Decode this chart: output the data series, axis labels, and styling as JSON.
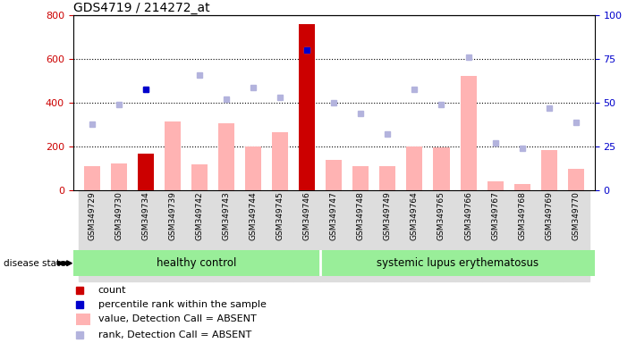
{
  "title": "GDS4719 / 214272_at",
  "samples": [
    "GSM349729",
    "GSM349730",
    "GSM349734",
    "GSM349739",
    "GSM349742",
    "GSM349743",
    "GSM349744",
    "GSM349745",
    "GSM349746",
    "GSM349747",
    "GSM349748",
    "GSM349749",
    "GSM349764",
    "GSM349765",
    "GSM349766",
    "GSM349767",
    "GSM349768",
    "GSM349769",
    "GSM349770"
  ],
  "n_healthy": 9,
  "n_sle": 10,
  "value_bars": [
    110,
    125,
    170,
    315,
    120,
    305,
    200,
    265,
    760,
    140,
    110,
    110,
    200,
    195,
    525,
    40,
    30,
    185,
    100
  ],
  "rank_dots_pct": [
    38,
    49,
    58,
    null,
    66,
    52,
    59,
    53,
    80,
    50,
    44,
    32,
    58,
    49,
    76,
    27,
    24,
    47,
    39
  ],
  "count_bars": [
    null,
    null,
    170,
    null,
    null,
    null,
    null,
    null,
    760,
    null,
    null,
    null,
    null,
    null,
    null,
    null,
    null,
    null,
    null
  ],
  "percentile_dots_pct": [
    null,
    null,
    58,
    null,
    null,
    null,
    null,
    null,
    80,
    null,
    null,
    null,
    null,
    null,
    null,
    null,
    null,
    null,
    null
  ],
  "ylim_left": [
    0,
    800
  ],
  "ylim_right": [
    0,
    100
  ],
  "left_yticks": [
    0,
    200,
    400,
    600,
    800
  ],
  "right_yticks": [
    0,
    25,
    50,
    75,
    100
  ],
  "bar_color_value": "#ffb3b3",
  "bar_color_count": "#cc0000",
  "dot_color_rank": "#b3b3dd",
  "dot_color_percentile": "#0000cc",
  "group_color": "#99ee99",
  "label_color_left": "#cc0000",
  "label_color_right": "#0000cc",
  "bg_color": "#ffffff",
  "plot_bg": "#ffffff",
  "xticklabel_bg": "#dddddd",
  "group_divider_color": "#ffffff",
  "grid_lines": [
    200,
    400,
    600
  ],
  "legend_items": [
    {
      "color": "#cc0000",
      "label": "count",
      "shape": "square"
    },
    {
      "color": "#0000cc",
      "label": "percentile rank within the sample",
      "shape": "square"
    },
    {
      "color": "#ffb3b3",
      "label": "value, Detection Call = ABSENT",
      "shape": "rect"
    },
    {
      "color": "#b3b3dd",
      "label": "rank, Detection Call = ABSENT",
      "shape": "square"
    }
  ],
  "disease_state_label": "disease state",
  "group_labels": [
    "healthy control",
    "systemic lupus erythematosus"
  ]
}
